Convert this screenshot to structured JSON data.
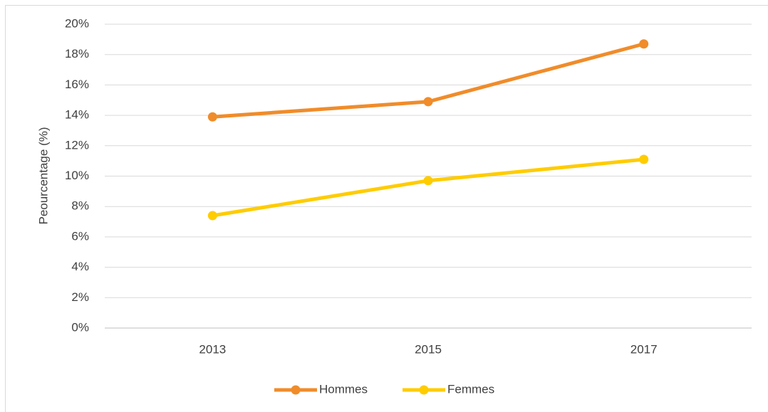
{
  "chart_data": {
    "type": "line",
    "y_label": "Peourcentage (%)",
    "categories": [
      "2013",
      "2015",
      "2017"
    ],
    "series": [
      {
        "name": "Hommes",
        "color": "#f08c2a",
        "values": [
          13.9,
          14.9,
          18.7
        ]
      },
      {
        "name": "Femmes",
        "color": "#ffcc00",
        "values": [
          7.4,
          9.7,
          11.1
        ]
      }
    ],
    "ylim": [
      0,
      20
    ],
    "yticks": [
      {
        "value": 0,
        "label": "0%"
      },
      {
        "value": 2,
        "label": "2%"
      },
      {
        "value": 4,
        "label": "4%"
      },
      {
        "value": 6,
        "label": "6%"
      },
      {
        "value": 8,
        "label": "8%"
      },
      {
        "value": 10,
        "label": "10%"
      },
      {
        "value": 12,
        "label": "12%"
      },
      {
        "value": 14,
        "label": "14%"
      },
      {
        "value": 16,
        "label": "16%"
      },
      {
        "value": 18,
        "label": "18%"
      },
      {
        "value": 20,
        "label": "20%"
      }
    ],
    "grid": true,
    "legend": "bottom"
  }
}
